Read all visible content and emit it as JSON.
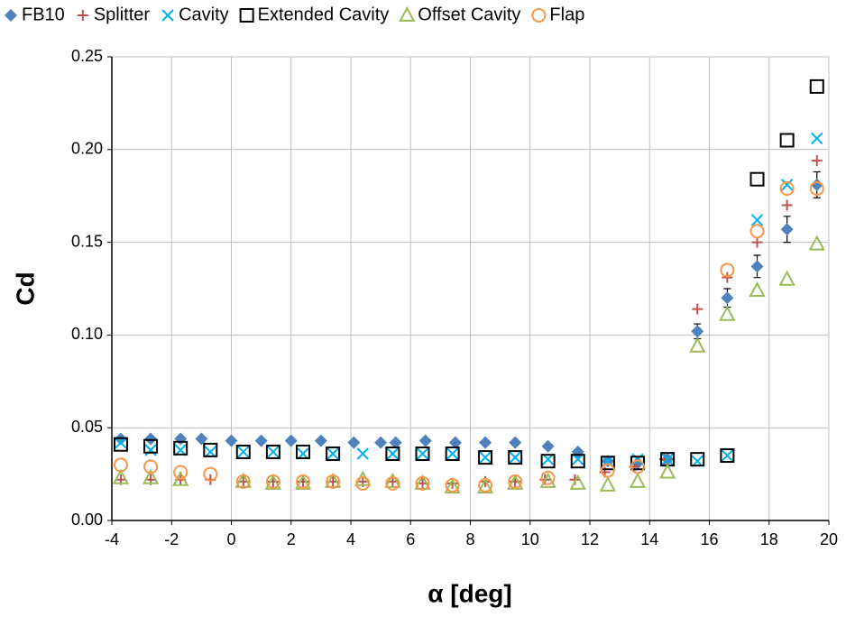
{
  "chart_data": {
    "type": "scatter",
    "xlabel": "α [deg]",
    "ylabel": "Cd",
    "xlim": [
      -4,
      20
    ],
    "xticks": [
      -4,
      -2,
      0,
      2,
      4,
      6,
      8,
      10,
      12,
      14,
      16,
      18,
      20
    ],
    "ylim": [
      0,
      0.25
    ],
    "yticks": [
      {
        "value": 0,
        "label": "0.00"
      },
      {
        "value": 0.05,
        "label": "0.05"
      },
      {
        "value": 0.1,
        "label": "0.10"
      },
      {
        "value": 0.15,
        "label": "0.15"
      },
      {
        "value": 0.2,
        "label": "0.20"
      },
      {
        "value": 0.25,
        "label": "0.25"
      }
    ],
    "grid": true,
    "legend": "top",
    "series": [
      {
        "name": "FB10",
        "color": "#4f81bd",
        "marker": "diamond",
        "x": [
          -3.7,
          -2.7,
          -1.7,
          -1,
          0,
          1,
          2,
          3,
          4.1,
          5,
          5.5,
          6.5,
          7.5,
          8.5,
          9.5,
          10.6,
          11.6,
          12.6,
          13.6,
          14.6,
          15.6,
          16.6,
          17.6,
          18.6,
          19.6
        ],
        "values": [
          0.044,
          0.044,
          0.044,
          0.044,
          0.043,
          0.043,
          0.043,
          0.043,
          0.042,
          0.042,
          0.042,
          0.043,
          0.042,
          0.042,
          0.042,
          0.04,
          0.037,
          0.032,
          0.031,
          0.033,
          0.102,
          0.12,
          0.137,
          0.157,
          0.181
        ],
        "errors": [
          null,
          null,
          null,
          null,
          null,
          null,
          null,
          null,
          null,
          null,
          null,
          null,
          null,
          null,
          null,
          null,
          null,
          null,
          null,
          null,
          0.004,
          0.005,
          0.006,
          0.007,
          0.007
        ]
      },
      {
        "name": "Splitter",
        "color": "#c0504d",
        "marker": "plus",
        "x": [
          -3.7,
          -2.7,
          -1.7,
          -0.7,
          0.4,
          1.4,
          2.4,
          3.4,
          4.4,
          5.4,
          6.4,
          7.4,
          8.5,
          9.5,
          10.5,
          11.5,
          12.5,
          13.5,
          14.5,
          15.6,
          16.6,
          17.6,
          18.6,
          19.6
        ],
        "values": [
          0.022,
          0.022,
          0.022,
          0.022,
          0.021,
          0.021,
          0.021,
          0.021,
          0.021,
          0.021,
          0.02,
          0.02,
          0.021,
          0.021,
          0.022,
          0.022,
          0.026,
          0.029,
          0.033,
          0.114,
          0.131,
          0.15,
          0.17,
          0.194
        ]
      },
      {
        "name": "Cavity",
        "color": "#00b0f0",
        "marker": "x",
        "x": [
          -3.7,
          -2.7,
          -1.7,
          -0.7,
          0.4,
          1.4,
          2.4,
          3.4,
          4.4,
          5.4,
          6.4,
          7.4,
          8.5,
          9.5,
          10.6,
          11.6,
          12.6,
          13.6,
          14.6,
          15.6,
          16.6,
          17.6,
          18.6,
          19.6
        ],
        "values": [
          0.042,
          0.038,
          0.038,
          0.037,
          0.037,
          0.037,
          0.036,
          0.036,
          0.036,
          0.036,
          0.036,
          0.036,
          0.034,
          0.034,
          0.033,
          0.033,
          0.032,
          0.033,
          0.033,
          0.032,
          0.035,
          0.162,
          0.181,
          0.206
        ]
      },
      {
        "name": "Extended Cavity",
        "color": "#000000",
        "marker": "square",
        "x": [
          -3.7,
          -2.7,
          -1.7,
          -0.7,
          0.4,
          1.4,
          2.4,
          3.4,
          5.4,
          6.4,
          7.4,
          8.5,
          9.5,
          10.6,
          11.6,
          12.6,
          13.6,
          14.6,
          15.6,
          16.6,
          17.6,
          18.6,
          19.6
        ],
        "values": [
          0.041,
          0.04,
          0.039,
          0.038,
          0.037,
          0.037,
          0.037,
          0.036,
          0.036,
          0.036,
          0.036,
          0.034,
          0.034,
          0.032,
          0.032,
          0.031,
          0.031,
          0.033,
          0.033,
          0.035,
          0.184,
          0.205,
          0.234
        ]
      },
      {
        "name": "Offset Cavity",
        "color": "#9bbb59",
        "marker": "triangle",
        "x": [
          -3.7,
          -2.7,
          -1.7,
          0.4,
          1.4,
          2.4,
          3.4,
          4.4,
          5.4,
          6.4,
          7.4,
          8.5,
          9.5,
          10.6,
          11.6,
          12.6,
          13.6,
          14.6,
          15.6,
          16.6,
          17.6,
          18.6,
          19.6
        ],
        "values": [
          0.023,
          0.023,
          0.022,
          0.021,
          0.02,
          0.02,
          0.021,
          0.022,
          0.021,
          0.02,
          0.018,
          0.018,
          0.02,
          0.021,
          0.02,
          0.019,
          0.021,
          0.026,
          0.094,
          0.111,
          0.124,
          0.13,
          0.149
        ]
      },
      {
        "name": "Flap",
        "color": "#f79646",
        "marker": "circle",
        "x": [
          -3.7,
          -2.7,
          -1.7,
          -0.7,
          0.4,
          1.4,
          2.4,
          3.4,
          4.4,
          5.4,
          6.4,
          7.4,
          8.5,
          9.5,
          10.6,
          12.6,
          13.6,
          16.6,
          17.6,
          18.6,
          19.6
        ],
        "values": [
          0.03,
          0.029,
          0.026,
          0.025,
          0.021,
          0.021,
          0.021,
          0.021,
          0.02,
          0.02,
          0.02,
          0.019,
          0.019,
          0.021,
          0.023,
          0.027,
          0.029,
          0.135,
          0.156,
          0.179,
          0.179
        ]
      }
    ]
  }
}
